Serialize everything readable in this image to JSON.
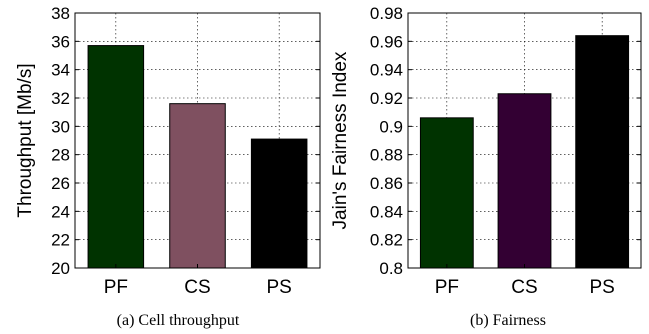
{
  "chart_data": [
    {
      "type": "bar",
      "categories": [
        "PF",
        "CS",
        "PS"
      ],
      "values": [
        35.7,
        31.6,
        29.1
      ],
      "colors": [
        "#003300",
        "#7f5060",
        "#000000"
      ],
      "ylabel": "Throughput [Mb/s]",
      "ylim": [
        20,
        38
      ],
      "yticks": [
        "20",
        "22",
        "24",
        "26",
        "28",
        "30",
        "32",
        "34",
        "36",
        "38"
      ],
      "caption": "(a) Cell throughput",
      "grid": true
    },
    {
      "type": "bar",
      "categories": [
        "PF",
        "CS",
        "PS"
      ],
      "values": [
        0.906,
        0.923,
        0.964
      ],
      "colors": [
        "#003300",
        "#330033",
        "#000000"
      ],
      "ylabel": "Jain's Fairness Index",
      "ylim": [
        0.8,
        0.98
      ],
      "yticks": [
        "0.8",
        "0.82",
        "0.84",
        "0.86",
        "0.88",
        "0.9",
        "0.92",
        "0.94",
        "0.96",
        "0.98"
      ],
      "caption": "(b) Fairness",
      "grid": true
    }
  ]
}
